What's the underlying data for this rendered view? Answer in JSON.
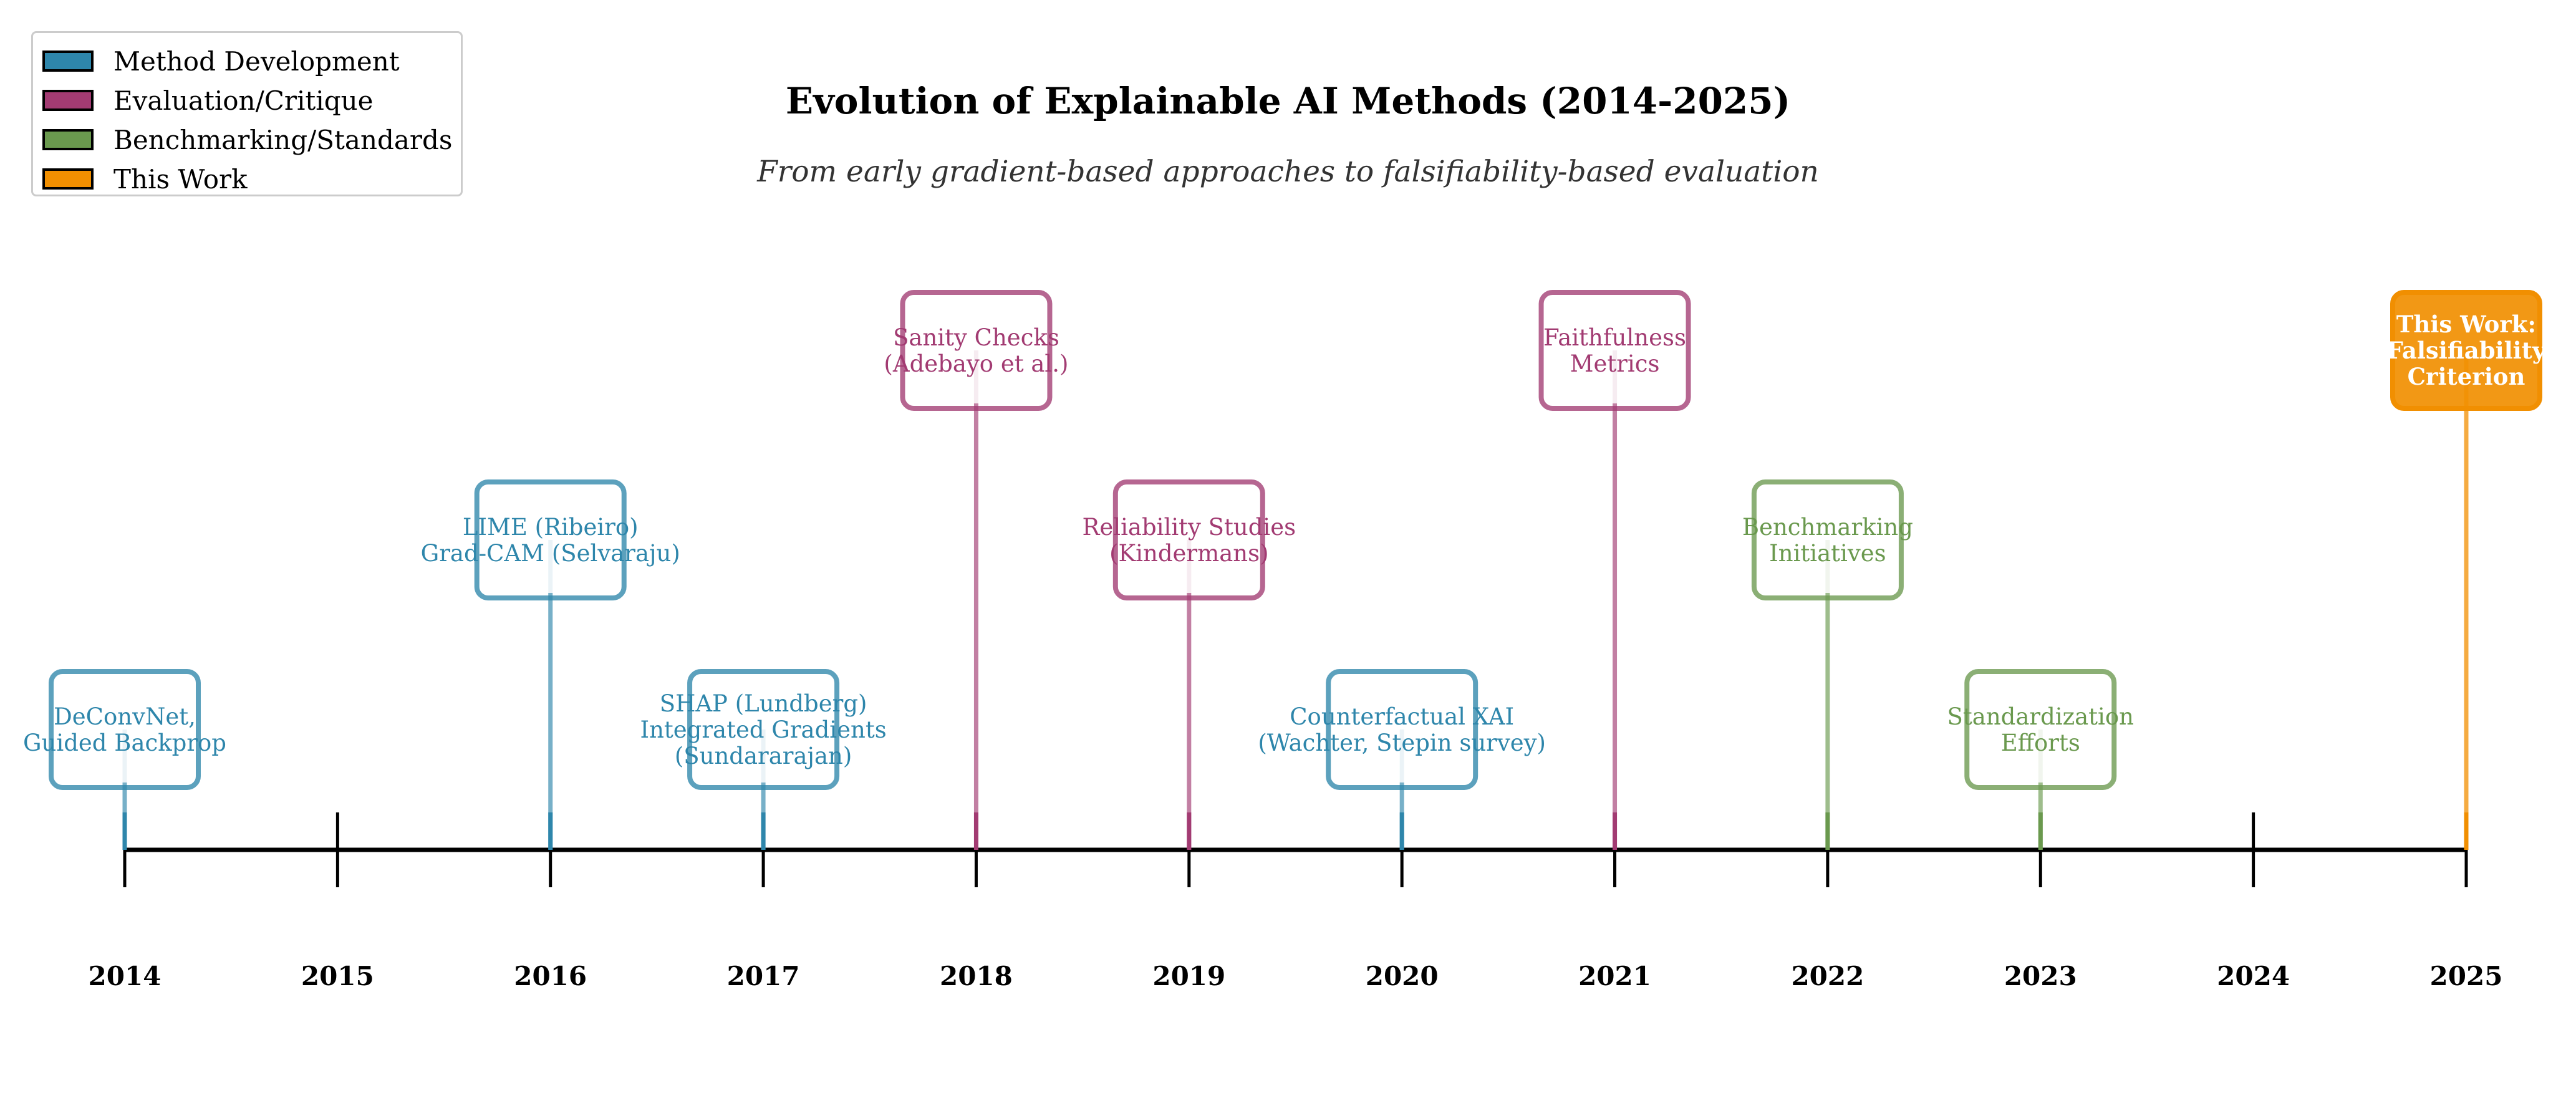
{
  "title": "Evolution of Explainable AI Methods (2014-2025)",
  "subtitle": "From early gradient-based approaches to falsifiability-based evaluation",
  "legend": [
    {
      "label": "Method Development",
      "category": "method",
      "color": "#2e86ab"
    },
    {
      "label": "Evaluation/Critique",
      "category": "evaluation",
      "color": "#a23b72"
    },
    {
      "label": "Benchmarking/Standards",
      "category": "benchmark",
      "color": "#6a994e"
    },
    {
      "label": "This Work",
      "category": "thiswork",
      "color": "#f18f01"
    }
  ],
  "colors": {
    "method": "#2e86ab",
    "evaluation": "#a23b72",
    "benchmark": "#6a994e",
    "thiswork": "#f18f01",
    "axis": "#000000"
  },
  "chart_data": {
    "type": "timeline",
    "x_range": [
      2014,
      2025
    ],
    "ticks": [
      "2014",
      "2015",
      "2016",
      "2017",
      "2018",
      "2019",
      "2020",
      "2021",
      "2022",
      "2023",
      "2024",
      "2025"
    ],
    "events": [
      {
        "year": 2014,
        "level": 1,
        "category": "method",
        "lines": [
          "DeConvNet,",
          "Guided Backprop"
        ]
      },
      {
        "year": 2016,
        "level": 2,
        "category": "method",
        "lines": [
          "LIME (Ribeiro)",
          "Grad-CAM (Selvaraju)"
        ]
      },
      {
        "year": 2017,
        "level": 1,
        "category": "method",
        "lines": [
          "SHAP (Lundberg)",
          "Integrated Gradients",
          "(Sundararajan)"
        ]
      },
      {
        "year": 2018,
        "level": 3,
        "category": "evaluation",
        "lines": [
          "Sanity Checks",
          "(Adebayo et al.)"
        ]
      },
      {
        "year": 2019,
        "level": 2,
        "category": "evaluation",
        "lines": [
          "Reliability Studies",
          "(Kindermans)"
        ]
      },
      {
        "year": 2020,
        "level": 1,
        "category": "method",
        "lines": [
          "Counterfactual XAI",
          "(Wachter, Stepin survey)"
        ]
      },
      {
        "year": 2021,
        "level": 3,
        "category": "evaluation",
        "lines": [
          "Faithfulness",
          "Metrics"
        ]
      },
      {
        "year": 2022,
        "level": 2,
        "category": "benchmark",
        "lines": [
          "Benchmarking",
          "Initiatives"
        ]
      },
      {
        "year": 2023,
        "level": 1,
        "category": "benchmark",
        "lines": [
          "Standardization",
          "Efforts"
        ]
      },
      {
        "year": 2025,
        "level": 3,
        "category": "thiswork",
        "lines": [
          "This Work:",
          "Falsifiability",
          "Criterion"
        ]
      }
    ]
  }
}
